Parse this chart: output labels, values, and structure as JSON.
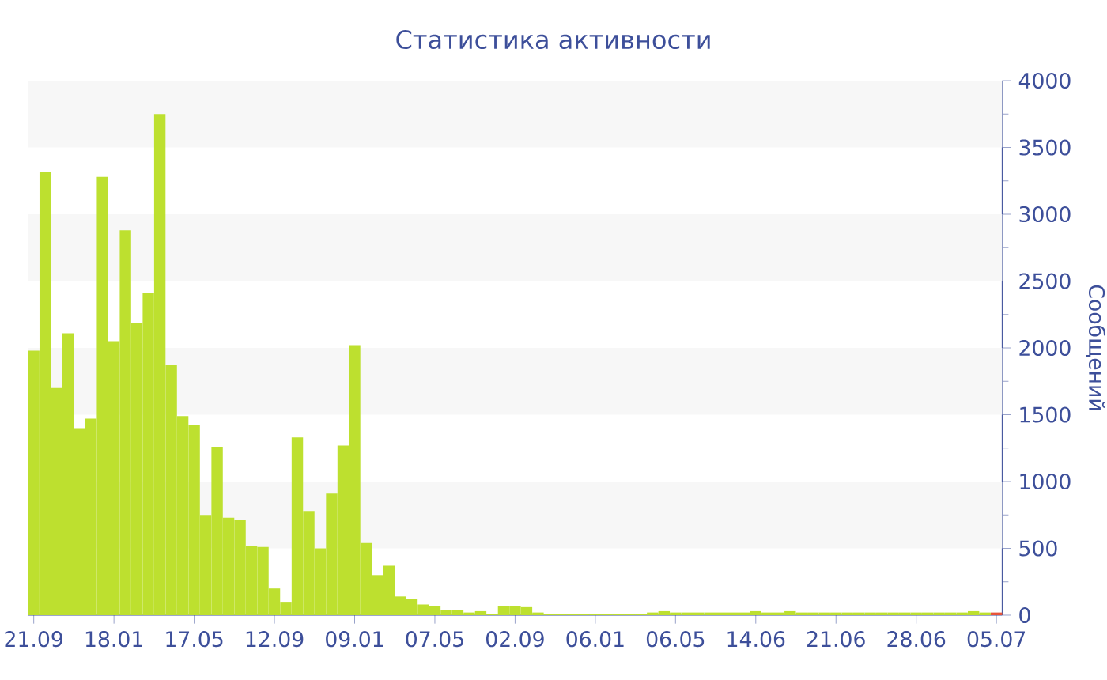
{
  "chart_data": {
    "type": "bar",
    "title": "Статистика активности",
    "ylabel": "Сообщений",
    "categories": [
      "21.09",
      null,
      null,
      null,
      null,
      null,
      null,
      "18.01",
      null,
      null,
      null,
      null,
      null,
      null,
      "17.05",
      null,
      null,
      null,
      null,
      null,
      null,
      "12.09",
      null,
      null,
      null,
      null,
      null,
      null,
      "09.01",
      null,
      null,
      null,
      null,
      null,
      null,
      "07.05",
      null,
      null,
      null,
      null,
      null,
      null,
      "02.09",
      null,
      null,
      null,
      null,
      null,
      null,
      "06.01",
      null,
      null,
      null,
      null,
      null,
      null,
      "06.05",
      null,
      null,
      null,
      null,
      null,
      null,
      "14.06",
      null,
      null,
      null,
      null,
      null,
      null,
      "21.06",
      null,
      null,
      null,
      null,
      null,
      null,
      "28.06",
      null,
      null,
      null,
      null,
      null,
      null,
      "05.07"
    ],
    "values": [
      1980,
      3320,
      1700,
      2110,
      1400,
      1470,
      3280,
      2050,
      2880,
      2190,
      2410,
      3750,
      1870,
      1490,
      1420,
      750,
      1260,
      730,
      710,
      520,
      510,
      200,
      100,
      1330,
      780,
      500,
      910,
      1270,
      2020,
      540,
      300,
      370,
      140,
      120,
      80,
      70,
      40,
      40,
      20,
      30,
      10,
      70,
      70,
      60,
      20,
      10,
      10,
      10,
      10,
      10,
      10,
      10,
      10,
      10,
      20,
      30,
      20,
      20,
      20,
      20,
      20,
      20,
      20,
      30,
      20,
      20,
      30,
      20,
      20,
      20,
      20,
      20,
      20,
      20,
      20,
      20,
      20,
      20,
      20,
      20,
      20,
      20,
      30,
      20,
      20
    ],
    "colors": [
      "#bde02f",
      "#bde02f",
      "#bde02f",
      "#bde02f",
      "#bde02f",
      "#bde02f",
      "#bde02f",
      "#bde02f",
      "#bde02f",
      "#bde02f",
      "#bde02f",
      "#bde02f",
      "#bde02f",
      "#bde02f",
      "#bde02f",
      "#bde02f",
      "#bde02f",
      "#bde02f",
      "#bde02f",
      "#bde02f",
      "#bde02f",
      "#bde02f",
      "#bde02f",
      "#bde02f",
      "#bde02f",
      "#bde02f",
      "#bde02f",
      "#bde02f",
      "#bde02f",
      "#bde02f",
      "#bde02f",
      "#bde02f",
      "#bde02f",
      "#bde02f",
      "#bde02f",
      "#bde02f",
      "#bde02f",
      "#bde02f",
      "#bde02f",
      "#bde02f",
      "#bde02f",
      "#bde02f",
      "#bde02f",
      "#bde02f",
      "#bde02f",
      "#bde02f",
      "#bde02f",
      "#bde02f",
      "#bde02f",
      "#bde02f",
      "#bde02f",
      "#bde02f",
      "#bde02f",
      "#bde02f",
      "#bde02f",
      "#bde02f",
      "#bde02f",
      "#bde02f",
      "#bde02f",
      "#bde02f",
      "#bde02f",
      "#bde02f",
      "#bde02f",
      "#bde02f",
      "#bde02f",
      "#bde02f",
      "#bde02f",
      "#bde02f",
      "#bde02f",
      "#bde02f",
      "#bde02f",
      "#bde02f",
      "#bde02f",
      "#bde02f",
      "#bde02f",
      "#bde02f",
      "#bde02f",
      "#bde02f",
      "#bde02f",
      "#bde02f",
      "#bde02f",
      "#bde02f",
      "#bde02f",
      "#bde02f",
      "#e8553a"
    ],
    "ylim": [
      0,
      4000
    ],
    "yticks": [
      0,
      500,
      1000,
      1500,
      2000,
      2500,
      3000,
      3500,
      4000
    ],
    "bands": [
      {
        "axis": "y",
        "from": 500,
        "to": 1000,
        "color": "#f7f7f7"
      },
      {
        "axis": "y",
        "from": 1500,
        "to": 2000,
        "color": "#f7f7f7"
      },
      {
        "axis": "y",
        "from": 2500,
        "to": 3000,
        "color": "#f7f7f7"
      },
      {
        "axis": "y",
        "from": 3500,
        "to": 4000,
        "color": "#f7f7f7"
      }
    ]
  }
}
